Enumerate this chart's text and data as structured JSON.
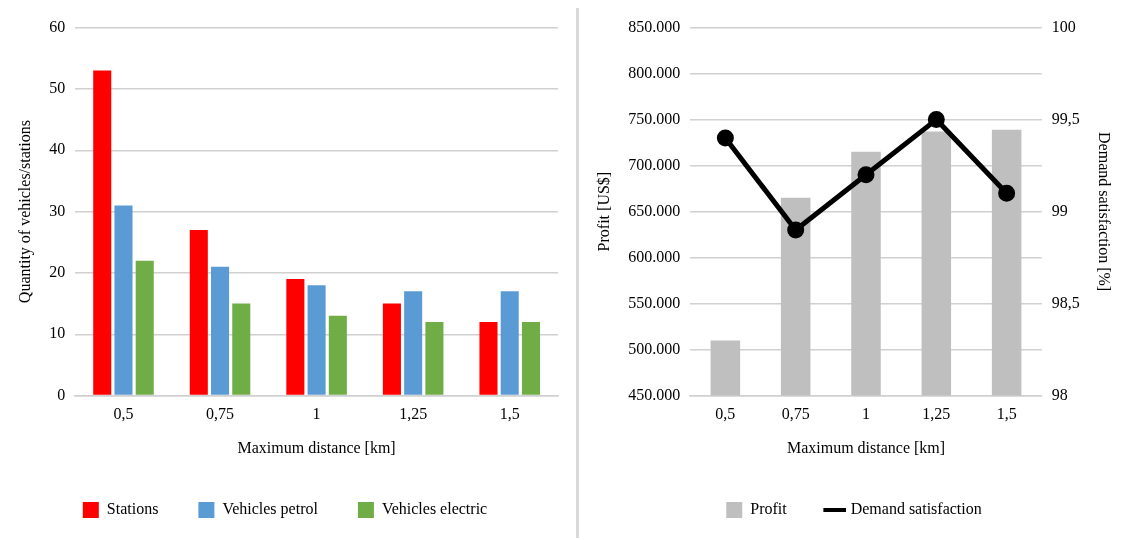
{
  "chart_data": [
    {
      "type": "bar",
      "xlabel": "Maximum distance [km]",
      "ylabel": "Quantity of vehicles/stations",
      "categories": [
        "0,5",
        "0,75",
        "1",
        "1,25",
        "1,5"
      ],
      "series": [
        {
          "name": "Stations",
          "color": "#ff0000",
          "values": [
            53,
            27,
            19,
            15,
            12
          ]
        },
        {
          "name": "Vehicles petrol",
          "color": "#5b9bd5",
          "values": [
            31,
            21,
            18,
            17,
            17
          ]
        },
        {
          "name": "Vehicles electric",
          "color": "#70ad47",
          "values": [
            22,
            15,
            13,
            12,
            12
          ]
        }
      ],
      "ylim": [
        0,
        60
      ],
      "yticks": [
        0,
        10,
        20,
        30,
        40,
        50,
        60
      ],
      "grid": "y",
      "legend": "bottom"
    },
    {
      "type": "bar",
      "xlabel": "Maximum distance [km]",
      "ylabel": "Profit [US$]",
      "y2label": "Demand satisfaction [%]",
      "categories": [
        "0,5",
        "0,75",
        "1",
        "1,25",
        "1,5"
      ],
      "series": [
        {
          "name": "Profit",
          "type": "bar",
          "color": "#bfbfbf",
          "values": [
            510000,
            665000,
            715000,
            737000,
            739000
          ]
        },
        {
          "name": "Demand satisfaction",
          "type": "line",
          "axis": "y2",
          "color": "#000000",
          "values": [
            99.4,
            98.9,
            99.2,
            99.5,
            99.1
          ]
        }
      ],
      "ylim": [
        450000,
        850000
      ],
      "yticks": [
        {
          "value": 450000,
          "label": "450.000"
        },
        {
          "value": 500000,
          "label": "500.000"
        },
        {
          "value": 550000,
          "label": "550.000"
        },
        {
          "value": 600000,
          "label": "600.000"
        },
        {
          "value": 650000,
          "label": "650.000"
        },
        {
          "value": 700000,
          "label": "700.000"
        },
        {
          "value": 750000,
          "label": "750.000"
        },
        {
          "value": 800000,
          "label": "800.000"
        },
        {
          "value": 850000,
          "label": "850.000"
        }
      ],
      "y2lim": [
        98,
        100
      ],
      "y2ticks": [
        98,
        {
          "value": 98.5,
          "label": "98,5"
        },
        99,
        {
          "value": 99.5,
          "label": "99,5"
        },
        100
      ],
      "grid": "y",
      "legend": "bottom",
      "marker": "circle",
      "line_style": "solid"
    }
  ]
}
